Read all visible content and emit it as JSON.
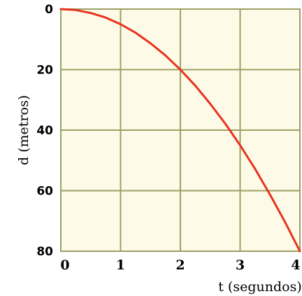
{
  "chart_data": {
    "type": "line",
    "xlabel": "t (segundos)",
    "ylabel": "d (metros)",
    "xlim": [
      0,
      4
    ],
    "ylim": [
      0,
      80
    ],
    "y_inverted": true,
    "x_ticks": [
      "0",
      "1",
      "2",
      "3",
      "4"
    ],
    "y_ticks": [
      "0",
      "20",
      "40",
      "60",
      "80"
    ],
    "grid": true,
    "series": [
      {
        "x": [
          0,
          0.25,
          0.5,
          0.75,
          1,
          1.25,
          1.5,
          1.75,
          2,
          2.25,
          2.5,
          2.75,
          3,
          3.25,
          3.5,
          3.75,
          4
        ],
        "y": [
          0,
          0.3,
          1.3,
          2.8,
          5,
          7.8,
          11.3,
          15.3,
          20,
          25.3,
          31.3,
          37.8,
          45,
          52.8,
          61.3,
          70.3,
          80
        ]
      }
    ]
  },
  "colors": {
    "grid": "#9aa064",
    "plot_background": "#fdfbe8",
    "curve": "#e8321e"
  }
}
